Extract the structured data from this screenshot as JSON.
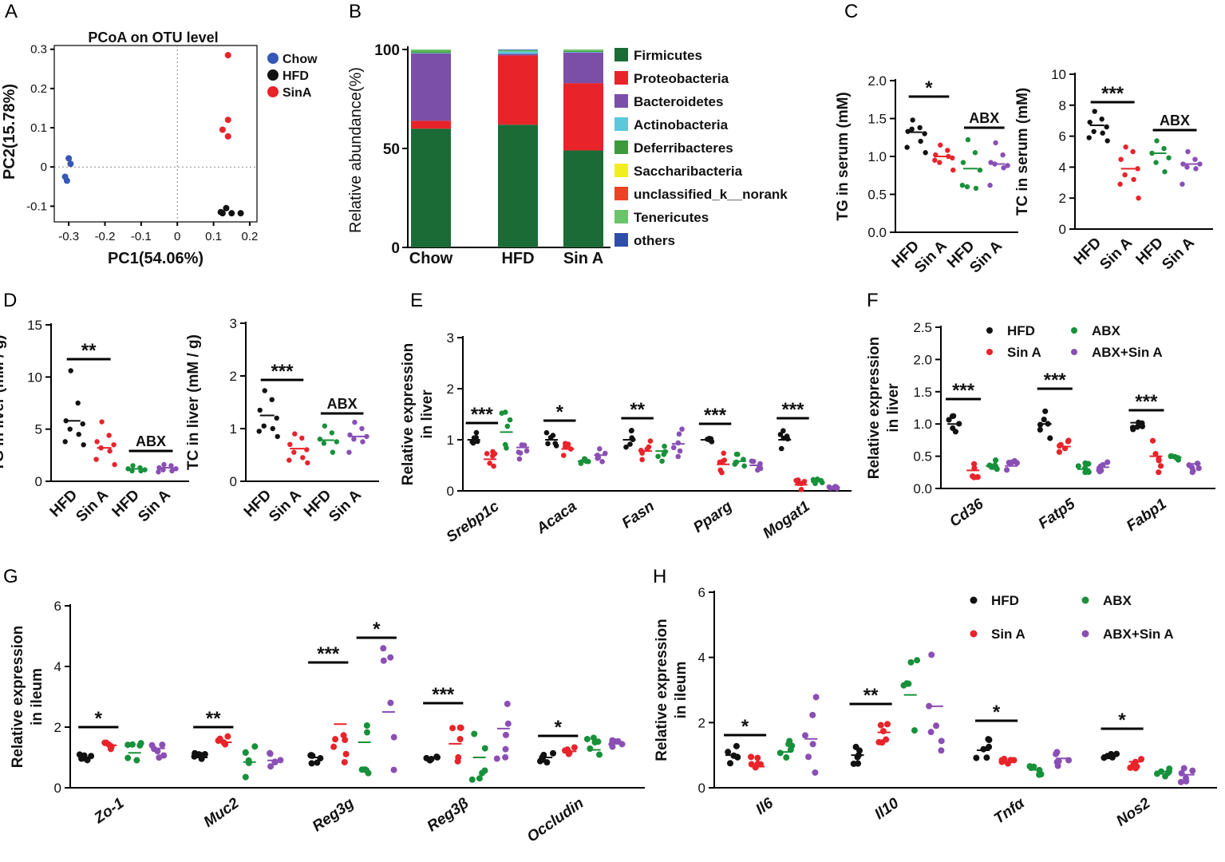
{
  "colors": {
    "chow": "#3557b5",
    "hfd": "#111111",
    "sina": "#e8232a",
    "abx": "#17913a",
    "abx_sina": "#8a4fb4",
    "firmicutes": "#1b6b37",
    "proteobacteria": "#e8232a",
    "bacteroidetes": "#7b4fa8",
    "actinobacteria": "#5bc8dc",
    "deferribacteres": "#3c9a3a",
    "saccharibacteria": "#f2ee1e",
    "unclassified": "#ee4322",
    "tenericutes": "#6cc46a",
    "others": "#2e4ea9"
  },
  "chart_data": [
    {
      "panel": "A",
      "type": "scatter",
      "title": "PCoA on OTU level",
      "xlabel": "PC1(54.06%)",
      "ylabel": "PC2(15.78%)",
      "xlim": [
        -0.34,
        0.22
      ],
      "ylim": [
        -0.14,
        0.33
      ],
      "xticks": [
        "-0.3",
        "-0.2",
        "-0.1",
        "0",
        "0.1",
        "0.2"
      ],
      "yticks": [
        "-0.1",
        "0",
        "0.1",
        "0.2",
        "0.3"
      ],
      "legend": [
        "Chow",
        "HFD",
        "SinA"
      ],
      "series": [
        {
          "name": "Chow",
          "color_key": "chow",
          "x": [
            -0.3,
            -0.295,
            -0.31,
            -0.305
          ],
          "y": [
            0.022,
            0.008,
            -0.025,
            -0.035
          ]
        },
        {
          "name": "HFD",
          "color_key": "hfd",
          "x": [
            0.12,
            0.135,
            0.15,
            0.175,
            0.125
          ],
          "y": [
            -0.115,
            -0.105,
            -0.118,
            -0.118,
            -0.118
          ]
        },
        {
          "name": "SinA",
          "color_key": "sina",
          "x": [
            0.14,
            0.14,
            0.125,
            0.14
          ],
          "y": [
            0.285,
            0.12,
            0.095,
            0.078
          ]
        }
      ]
    },
    {
      "panel": "B",
      "type": "bar",
      "stacked": true,
      "ylabel": "Relative abundance(%)",
      "ylim": [
        0,
        100
      ],
      "yticks": [
        "0",
        "50",
        "100"
      ],
      "categories": [
        "Chow",
        "HFD",
        "Sin A"
      ],
      "series": [
        {
          "name": "Firmicutes",
          "color_key": "firmicutes",
          "values": [
            60,
            62,
            49
          ]
        },
        {
          "name": "Proteobacteria",
          "color_key": "proteobacteria",
          "values": [
            4,
            35,
            34
          ]
        },
        {
          "name": "Bacteroidetes",
          "color_key": "bacteroidetes",
          "values": [
            34,
            0.8,
            15.5
          ]
        },
        {
          "name": "Actinobacteria",
          "color_key": "actinobacteria",
          "values": [
            0.3,
            1.2,
            0.3
          ]
        },
        {
          "name": "Deferribacteres",
          "color_key": "deferribacteres",
          "values": [
            0.7,
            0,
            0.5
          ]
        },
        {
          "name": "Saccharibacteria",
          "color_key": "saccharibacteria",
          "values": [
            0,
            0,
            0
          ]
        },
        {
          "name": "unclassified_k__norank",
          "color_key": "unclassified",
          "values": [
            0,
            0,
            0
          ]
        },
        {
          "name": "Tenericutes",
          "color_key": "tenericutes",
          "values": [
            1,
            0.7,
            0.7
          ]
        },
        {
          "name": "others",
          "color_key": "others",
          "values": [
            0,
            0.3,
            0
          ]
        }
      ]
    },
    {
      "panel": "C-left",
      "type": "scatter",
      "ylabel": "TG in serum (mM)",
      "ylim": [
        0,
        2.0
      ],
      "yticks": [
        "0.0",
        "0.5",
        "1.0",
        "1.5",
        "2.0"
      ],
      "categories": [
        "HFD",
        "Sin A",
        "HFD",
        "Sin A"
      ],
      "group_colors": [
        "hfd",
        "sina",
        "abx",
        "abx_sina"
      ],
      "groups": [
        [
          1.48,
          1.38,
          1.33,
          1.3,
          1.36,
          1.2,
          1.12,
          1.05
        ],
        [
          1.15,
          1.08,
          1.02,
          0.98,
          0.92,
          1.0,
          0.95,
          0.82
        ],
        [
          1.22,
          1.05,
          0.92,
          0.82,
          0.6,
          0.58,
          0.62
        ],
        [
          1.18,
          1.02,
          0.92,
          0.88,
          0.9,
          0.85,
          0.62
        ]
      ],
      "means": [
        1.32,
        1.0,
        0.84,
        0.9
      ],
      "annotations": [
        {
          "text": "*",
          "over": [
            0,
            1
          ]
        },
        {
          "text": "ABX",
          "over": [
            2,
            3
          ]
        }
      ]
    },
    {
      "panel": "C-right",
      "type": "scatter",
      "ylabel": "TC in serum (mM)",
      "ylim": [
        0,
        10
      ],
      "yticks": [
        "0",
        "2",
        "4",
        "6",
        "8",
        "10"
      ],
      "categories": [
        "HFD",
        "Sin A",
        "HFD",
        "Sin A"
      ],
      "group_colors": [
        "hfd",
        "sina",
        "abx",
        "abx_sina"
      ],
      "groups": [
        [
          7.6,
          7.1,
          6.9,
          6.6,
          6.3,
          6.2,
          5.9,
          5.7
        ],
        [
          5.3,
          5.0,
          4.5,
          3.9,
          3.5,
          3.2,
          2.9,
          2.0
        ],
        [
          5.7,
          5.2,
          4.9,
          4.6,
          4.3,
          3.7
        ],
        [
          5.0,
          4.5,
          4.2,
          4.2,
          4.0,
          3.9,
          2.9
        ]
      ],
      "means": [
        6.7,
        3.9,
        4.9,
        4.2
      ],
      "annotations": [
        {
          "text": "***",
          "over": [
            0,
            1
          ]
        },
        {
          "text": "ABX",
          "over": [
            2,
            3
          ]
        }
      ]
    },
    {
      "panel": "D-left",
      "type": "scatter",
      "ylabel": "TG in liver (mM / g)",
      "ylim": [
        0,
        15
      ],
      "yticks": [
        "0",
        "5",
        "10",
        "15"
      ],
      "categories": [
        "HFD",
        "Sin A",
        "HFD",
        "Sin A"
      ],
      "group_colors": [
        "hfd",
        "sina",
        "abx",
        "abx_sina"
      ],
      "groups": [
        [
          10.6,
          7.5,
          5.8,
          5.5,
          5.0,
          4.5,
          3.8,
          3.5
        ],
        [
          5.7,
          4.4,
          3.8,
          3.5,
          3.2,
          2.9,
          2.1,
          1.6
        ],
        [
          1.5,
          1.3,
          1.2,
          1.1,
          1.0,
          1.0
        ],
        [
          1.6,
          1.5,
          1.3,
          1.2,
          1.1,
          1.0,
          0.9
        ]
      ],
      "means": [
        5.8,
        3.2,
        1.2,
        1.3
      ],
      "annotations": [
        {
          "text": "**",
          "over": [
            0,
            1
          ]
        },
        {
          "text": "ABX",
          "over": [
            2,
            3
          ]
        }
      ]
    },
    {
      "panel": "D-right",
      "type": "scatter",
      "ylabel": "TC in liver (mM / g)",
      "ylim": [
        0,
        3
      ],
      "yticks": [
        "0",
        "1",
        "2",
        "3"
      ],
      "categories": [
        "HFD",
        "Sin A",
        "HFD",
        "Sin A"
      ],
      "group_colors": [
        "hfd",
        "sina",
        "abx",
        "abx_sina"
      ],
      "groups": [
        [
          1.72,
          1.55,
          1.35,
          1.2,
          1.05,
          1.0,
          0.95,
          0.85
        ],
        [
          0.9,
          0.82,
          0.7,
          0.6,
          0.55,
          0.45,
          0.4,
          0.35
        ],
        [
          1.05,
          0.92,
          0.8,
          0.75,
          0.72,
          0.55
        ],
        [
          1.12,
          1.0,
          0.88,
          0.85,
          0.8,
          0.75,
          0.55
        ]
      ],
      "means": [
        1.25,
        0.62,
        0.78,
        0.85
      ],
      "annotations": [
        {
          "text": "***",
          "over": [
            0,
            1
          ]
        },
        {
          "text": "ABX",
          "over": [
            2,
            3
          ]
        }
      ]
    },
    {
      "panel": "E",
      "type": "scatter",
      "ylabel": [
        "Relative  expression",
        "in liver"
      ],
      "ylim": [
        0,
        3
      ],
      "yticks": [
        "0",
        "1",
        "2",
        "3"
      ],
      "categories": [
        "Srebp1c",
        "Acaca",
        "Fasn",
        "Pparg",
        "Mogat1"
      ],
      "group_colors": [
        "hfd",
        "sina",
        "abx",
        "abx_sina"
      ],
      "means": [
        [
          1.0,
          0.62,
          1.15,
          0.85
        ],
        [
          1.0,
          0.82,
          0.58,
          0.7
        ],
        [
          1.0,
          0.78,
          0.78,
          0.92
        ],
        [
          1.0,
          0.52,
          0.58,
          0.5
        ],
        [
          1.0,
          0.12,
          0.18,
          0.07
        ]
      ],
      "spread": [
        [
          0.2,
          0.15,
          0.45,
          0.35
        ],
        [
          0.15,
          0.15,
          0.05,
          0.15
        ],
        [
          0.2,
          0.2,
          0.2,
          0.3
        ],
        [
          0.05,
          0.25,
          0.2,
          0.1
        ],
        [
          0.2,
          0.1,
          0.05,
          0.03
        ]
      ],
      "annotations": [
        "***",
        "*",
        "**",
        "***",
        "***"
      ]
    },
    {
      "panel": "F",
      "type": "scatter",
      "ylabel": [
        "Relative  expression",
        "in liver"
      ],
      "ylim": [
        0,
        2.5
      ],
      "yticks": [
        "0.0",
        "0.5",
        "1.0",
        "1.5",
        "2.0",
        "2.5"
      ],
      "categories": [
        "Cd36",
        "Fatp5",
        "Fabp1"
      ],
      "legend": [
        "HFD",
        "Sin A",
        "ABX",
        "ABX+Sin A"
      ],
      "group_colors": [
        "hfd",
        "sina",
        "abx",
        "abx_sina"
      ],
      "means": [
        [
          1.0,
          0.28,
          0.35,
          0.35
        ],
        [
          1.0,
          0.65,
          0.3,
          0.33
        ],
        [
          1.02,
          0.5,
          0.48,
          0.38
        ]
      ],
      "spread": [
        [
          0.15,
          0.12,
          0.1,
          0.08
        ],
        [
          0.4,
          0.15,
          0.1,
          0.08
        ],
        [
          0.12,
          0.25,
          0.05,
          0.15
        ]
      ],
      "annotations": [
        "***",
        "***",
        "***"
      ]
    },
    {
      "panel": "G",
      "type": "scatter",
      "ylabel": [
        "Relative  expression",
        "in ileum"
      ],
      "ylim": [
        0,
        6
      ],
      "yticks": [
        "0",
        "2",
        "4",
        "6"
      ],
      "categories": [
        "Zo-1",
        "Muc2",
        "Reg3g",
        "Reg3β",
        "Occludin"
      ],
      "group_colors": [
        "hfd",
        "sina",
        "abx",
        "abx_sina"
      ],
      "means": [
        [
          1.0,
          1.4,
          1.15,
          1.3
        ],
        [
          1.0,
          1.5,
          0.85,
          0.9
        ],
        [
          1.0,
          2.1,
          1.5,
          2.5
        ],
        [
          1.0,
          1.45,
          1.0,
          1.95
        ],
        [
          1.0,
          1.2,
          1.25,
          1.45
        ]
      ],
      "spread": [
        [
          0.1,
          0.15,
          0.35,
          0.35
        ],
        [
          0.15,
          0.2,
          0.6,
          0.3
        ],
        [
          0.3,
          1.9,
          1.2,
          2.1
        ],
        [
          0.15,
          0.6,
          0.9,
          1.4
        ],
        [
          0.2,
          0.15,
          0.5,
          0.15
        ]
      ],
      "annotations": [
        {
          "text": "*",
          "over": [
            0,
            1
          ]
        },
        {
          "text": "**",
          "over": [
            0,
            1
          ]
        },
        {
          "text": "***",
          "over": [
            0,
            1
          ]
        },
        {
          "text": "***",
          "over": [
            0,
            1
          ]
        },
        {
          "text": "*",
          "over": [
            0,
            1
          ]
        }
      ],
      "extra_annotations": [
        {
          "text": "*",
          "category": 2,
          "over": [
            2,
            3
          ]
        }
      ]
    },
    {
      "panel": "H",
      "type": "scatter",
      "ylabel": [
        "Relative  expression",
        "in ileum"
      ],
      "ylim": [
        0,
        6
      ],
      "yticks": [
        "0",
        "2",
        "4",
        "6"
      ],
      "categories": [
        "Il6",
        "Il10",
        "Tnfα",
        "Nos2"
      ],
      "legend": [
        "HFD",
        "Sin A",
        "ABX",
        "ABX+Sin A"
      ],
      "group_colors": [
        "hfd",
        "sina",
        "abx",
        "abx_sina"
      ],
      "means": [
        [
          1.0,
          0.65,
          1.1,
          1.5
        ],
        [
          1.0,
          1.7,
          2.85,
          2.5
        ],
        [
          1.15,
          0.8,
          0.55,
          0.9
        ],
        [
          1.0,
          0.8,
          0.5,
          0.4
        ]
      ],
      "spread": [
        [
          0.3,
          0.35,
          0.4,
          1.3
        ],
        [
          0.3,
          0.35,
          1.2,
          2.0
        ],
        [
          0.35,
          0.1,
          0.2,
          0.25
        ],
        [
          0.08,
          0.2,
          0.15,
          0.3
        ]
      ],
      "annotations": [
        "*",
        "**",
        "*",
        "*"
      ]
    }
  ],
  "panel_letters": {
    "A": "A",
    "B": "B",
    "C": "C",
    "D": "D",
    "E": "E",
    "F": "F",
    "G": "G",
    "H": "H"
  }
}
